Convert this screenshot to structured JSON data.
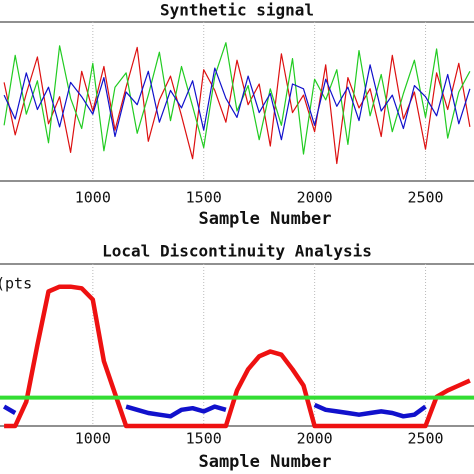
{
  "chart_data": [
    {
      "type": "line",
      "title": "Synthetic signal",
      "x_label": "Sample Number",
      "x": [
        600,
        650,
        700,
        750,
        800,
        850,
        900,
        950,
        1000,
        1050,
        1100,
        1150,
        1200,
        1250,
        1300,
        1350,
        1400,
        1450,
        1500,
        1550,
        1600,
        1650,
        1700,
        1750,
        1800,
        1850,
        1900,
        1950,
        2000,
        2050,
        2100,
        2150,
        2200,
        2250,
        2300,
        2350,
        2400,
        2450,
        2500,
        2550,
        2600,
        2650,
        2700
      ],
      "series": [
        {
          "color": "#dd1111",
          "values": [
            1.2,
            -2.1,
            0.5,
            2.8,
            -1.4,
            0.3,
            -3.2,
            1.9,
            -0.6,
            2.2,
            -1.8,
            0.9,
            3.4,
            -2.5,
            0.1,
            1.6,
            -0.9,
            -3.6,
            2.0,
            0.7,
            -1.3,
            2.6,
            -0.2,
            1.1,
            -2.8,
            3.0,
            -0.7,
            0.4,
            -1.9,
            2.3,
            -3.9,
            1.5,
            -0.4,
            0.8,
            -2.2,
            2.9,
            -1.1,
            0.6,
            -3.0,
            1.8,
            -0.5,
            2.4,
            -1.6
          ]
        },
        {
          "color": "#22cc22",
          "values": [
            -1.5,
            2.9,
            -0.8,
            1.3,
            -2.6,
            3.5,
            0.2,
            -1.7,
            2.4,
            -3.1,
            0.9,
            1.8,
            -2.0,
            0.4,
            3.1,
            -1.2,
            2.2,
            -0.3,
            -2.9,
            1.6,
            3.7,
            -0.6,
            1.0,
            -2.4,
            0.8,
            -1.5,
            2.7,
            -3.3,
            1.4,
            0.1,
            2.0,
            -2.7,
            3.2,
            -0.9,
            1.7,
            -1.9,
            0.5,
            2.6,
            -1.0,
            3.3,
            -2.3,
            0.6,
            1.9
          ]
        },
        {
          "color": "#1111cc",
          "values": [
            0.4,
            -1.1,
            1.8,
            -0.5,
            0.9,
            -1.6,
            1.2,
            0.3,
            -0.8,
            1.5,
            -2.2,
            0.6,
            -0.2,
            1.9,
            -1.3,
            0.7,
            -0.4,
            1.3,
            -1.8,
            2.1,
            0.2,
            -1.0,
            1.6,
            -0.7,
            0.5,
            -2.4,
            1.1,
            0.8,
            -1.5,
            1.4,
            -0.3,
            0.9,
            -1.2,
            2.3,
            -0.6,
            0.4,
            -1.7,
            1.0,
            0.3,
            -0.9,
            1.7,
            -1.4,
            0.8
          ]
        }
      ],
      "xlim": [
        577,
        2723
      ],
      "xticks": [
        1000,
        1500,
        2000,
        2500
      ],
      "ylim": [
        -5,
        5
      ],
      "grid": true
    },
    {
      "type": "line",
      "title": "Local Discontinuity Analysis",
      "x_label": "Sample Number",
      "y_label": "(pts",
      "x": [
        600,
        650,
        700,
        750,
        800,
        850,
        900,
        950,
        1000,
        1050,
        1100,
        1150,
        1200,
        1250,
        1300,
        1350,
        1400,
        1450,
        1500,
        1550,
        1600,
        1650,
        1700,
        1750,
        1800,
        1850,
        1900,
        1950,
        2000,
        2050,
        2100,
        2150,
        2200,
        2250,
        2300,
        2350,
        2400,
        2450,
        2500,
        2550,
        2600,
        2650,
        2700
      ],
      "series": [
        {
          "color": "#ee1111",
          "values": [
            0,
            0,
            1.5,
            5.0,
            8.3,
            8.6,
            8.6,
            8.5,
            7.8,
            4.0,
            2.0,
            0,
            0,
            0,
            0,
            0,
            0,
            0,
            0,
            0,
            0,
            2.2,
            3.5,
            4.3,
            4.6,
            4.4,
            3.5,
            2.5,
            0,
            0,
            0,
            0,
            0,
            0,
            0,
            0,
            0,
            0,
            0,
            1.8,
            2.2,
            2.5,
            2.8
          ]
        },
        {
          "color": "#1111cc",
          "values": [
            1.2,
            0.8,
            null,
            null,
            null,
            null,
            null,
            null,
            null,
            null,
            null,
            1.2,
            1.0,
            0.8,
            0.7,
            0.6,
            1.0,
            1.1,
            0.9,
            1.2,
            1.0,
            null,
            null,
            null,
            null,
            null,
            null,
            null,
            1.3,
            1.0,
            0.9,
            0.8,
            0.7,
            0.8,
            0.9,
            0.8,
            0.6,
            0.7,
            1.2,
            null,
            null,
            null,
            null
          ]
        }
      ],
      "threshold": 1.75,
      "threshold_color": "#33dd33",
      "xlim": [
        577,
        2723
      ],
      "xticks": [
        1000,
        1500,
        2000,
        2500
      ],
      "ylim": [
        0,
        10
      ],
      "grid": true
    }
  ]
}
